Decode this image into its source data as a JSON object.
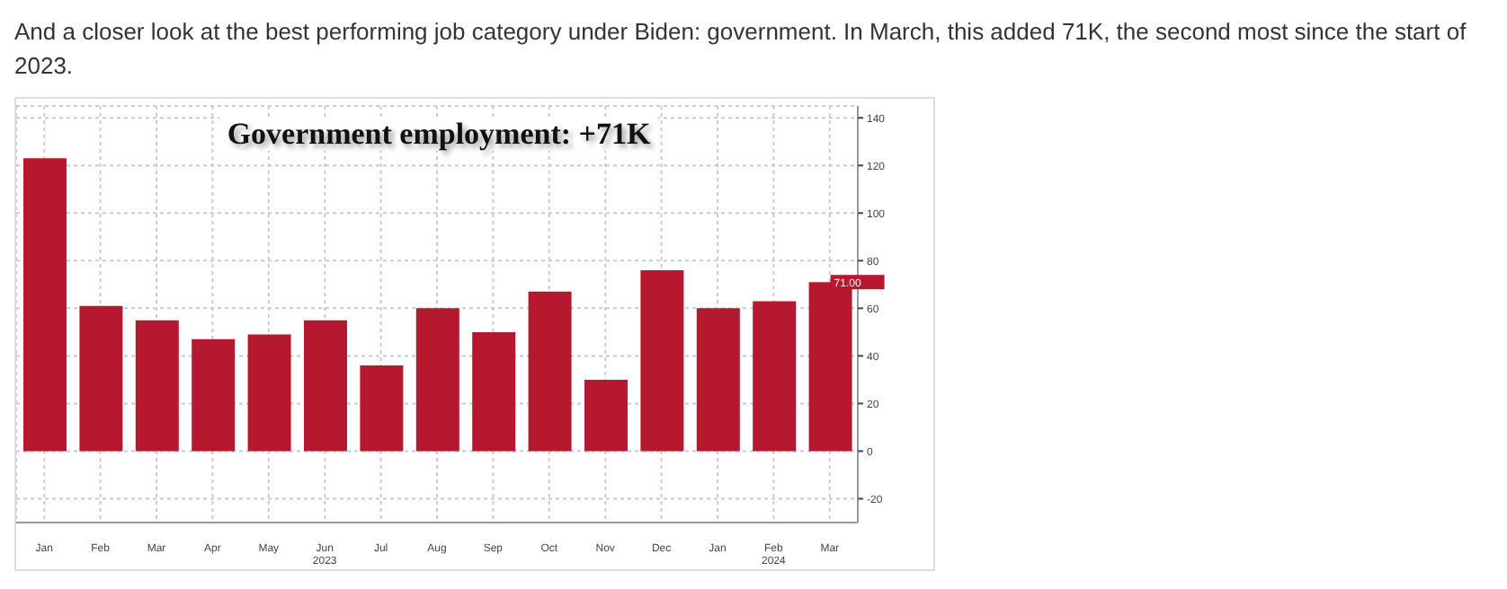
{
  "chart_data": {
    "type": "bar",
    "title": "Government employment: +71K",
    "annotations": [
      "And a closer look at the best performing job category under Biden: government. In March, this added 71K, the second most since the start of 2023."
    ],
    "categories": [
      "Jan",
      "Feb",
      "Mar",
      "Apr",
      "May",
      "Jun\n2023",
      "Jul",
      "Aug",
      "Sep",
      "Oct",
      "Nov",
      "Dec",
      "Jan",
      "Feb\n2024",
      "Mar"
    ],
    "values": [
      123,
      61,
      55,
      47,
      49,
      55,
      36,
      60,
      50,
      67,
      30,
      76,
      60,
      63,
      71
    ],
    "value_labels": [
      null,
      null,
      null,
      null,
      null,
      null,
      null,
      null,
      null,
      null,
      null,
      null,
      null,
      null,
      "71.00"
    ],
    "color": "#b5182f",
    "ylim": [
      -30,
      145
    ],
    "yticks": [
      -20,
      0,
      20,
      40,
      60,
      80,
      100,
      120,
      140
    ],
    "grid": true,
    "legend": false
  }
}
